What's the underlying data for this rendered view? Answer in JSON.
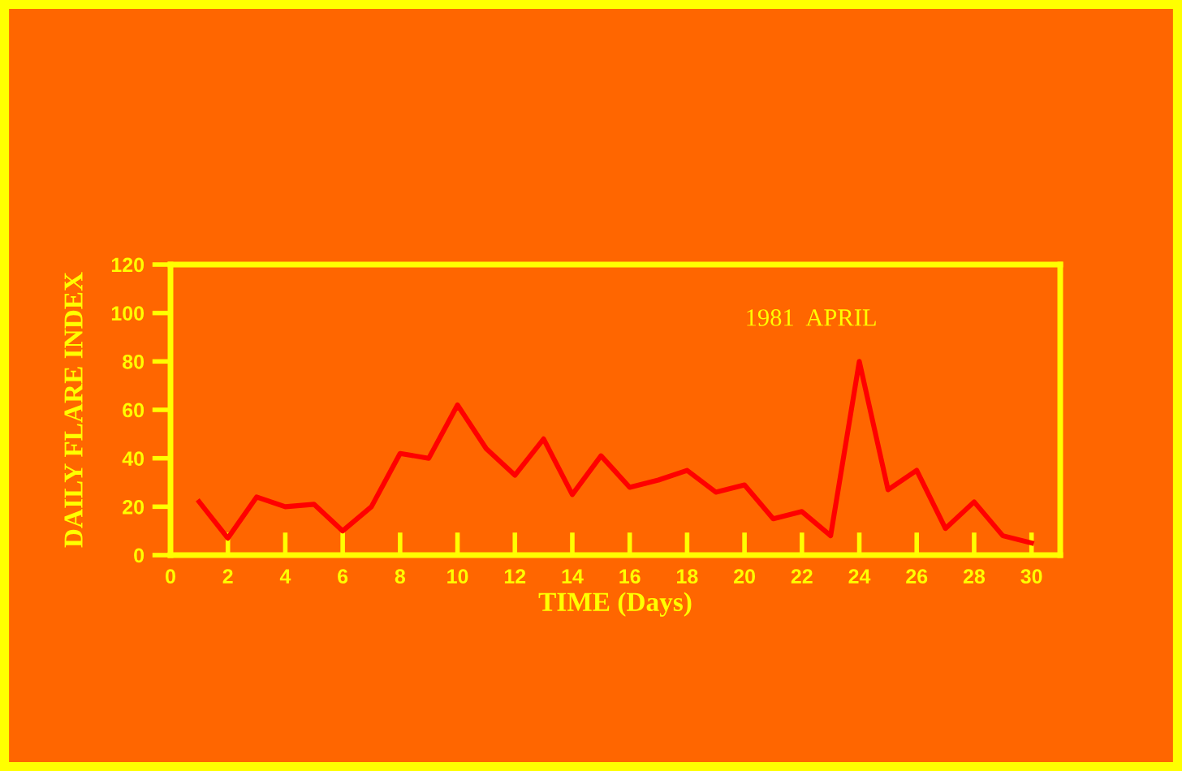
{
  "chart_data": {
    "type": "line",
    "xlabel": "TIME (Days)",
    "ylabel": "DAILY FLARE INDEX",
    "annotations": [
      "1981  APRIL"
    ],
    "x": [
      1,
      2,
      3,
      4,
      5,
      6,
      7,
      8,
      9,
      10,
      11,
      12,
      13,
      14,
      15,
      16,
      17,
      18,
      19,
      20,
      21,
      22,
      23,
      24,
      25,
      26,
      27,
      28,
      29,
      30
    ],
    "series": [
      {
        "color": "#ff0000",
        "values": [
          22,
          7,
          24,
          20,
          21,
          10,
          20,
          42,
          40,
          62,
          44,
          33,
          48,
          25,
          41,
          28,
          31,
          35,
          26,
          29,
          15,
          18,
          8,
          80,
          27,
          35,
          11,
          22,
          8,
          5
        ]
      }
    ],
    "xlim": [
      0,
      31
    ],
    "ylim": [
      0,
      120
    ],
    "xticks": [
      0,
      2,
      4,
      6,
      8,
      10,
      12,
      14,
      16,
      18,
      20,
      22,
      24,
      26,
      28,
      30
    ],
    "yticks": [
      0,
      20,
      40,
      60,
      80,
      100,
      120
    ],
    "grid": false,
    "legend": false,
    "marker": "none",
    "line_style": "solid"
  }
}
